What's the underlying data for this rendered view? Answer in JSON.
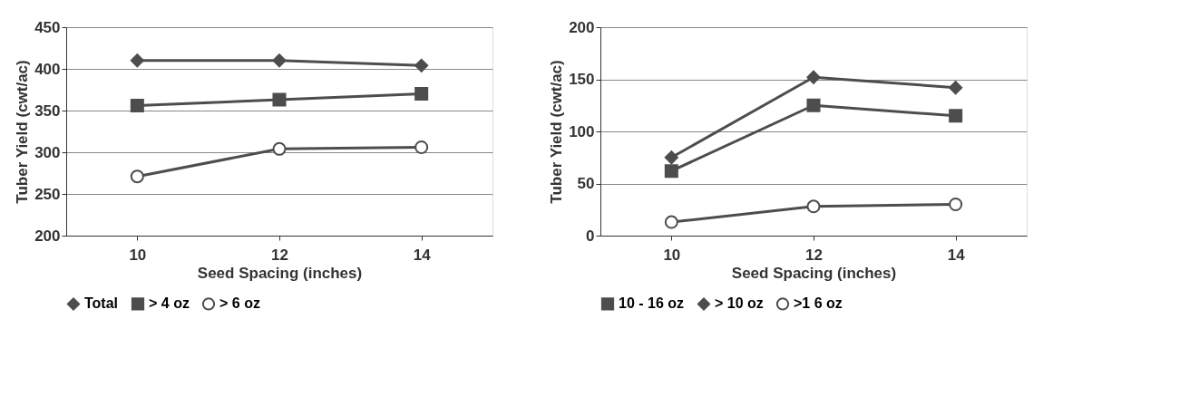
{
  "chart_data": [
    {
      "type": "line",
      "categories": [
        "10",
        "12",
        "14"
      ],
      "xlabel": "Seed Spacing (inches)",
      "ylabel": "Tuber Yield (cwt/ac)",
      "ylim": [
        200,
        450
      ],
      "yticks": [
        200,
        250,
        300,
        350,
        400,
        450
      ],
      "grid": "y",
      "legend": "bottom",
      "line_style": "solid",
      "series": [
        {
          "name": "Total",
          "color": "#4d4d4d",
          "marker": "diamond",
          "values": [
            410,
            410,
            404
          ]
        },
        {
          "name": "> 4 oz",
          "color": "#4d4d4d",
          "marker": "square",
          "values": [
            356,
            363,
            370
          ]
        },
        {
          "name": "> 6 oz",
          "color": "#4d4d4d",
          "marker": "circle",
          "values": [
            271,
            304,
            306
          ]
        }
      ]
    },
    {
      "type": "line",
      "categories": [
        "10",
        "12",
        "14"
      ],
      "xlabel": "Seed Spacing (inches)",
      "ylabel": "Tuber Yield (cwt/ac)",
      "ylim": [
        0,
        200
      ],
      "yticks": [
        0,
        50,
        100,
        150,
        200
      ],
      "grid": "y",
      "legend": "bottom",
      "line_style": "solid",
      "series": [
        {
          "name": "10 - 16 oz",
          "color": "#4d4d4d",
          "marker": "square",
          "values": [
            62,
            125,
            115
          ]
        },
        {
          "name": "> 10 oz",
          "color": "#4d4d4d",
          "marker": "diamond",
          "values": [
            75,
            152,
            142
          ]
        },
        {
          "name": ">1 6 oz",
          "color": "#4d4d4d",
          "marker": "circle",
          "values": [
            13,
            28,
            30
          ]
        }
      ]
    }
  ]
}
